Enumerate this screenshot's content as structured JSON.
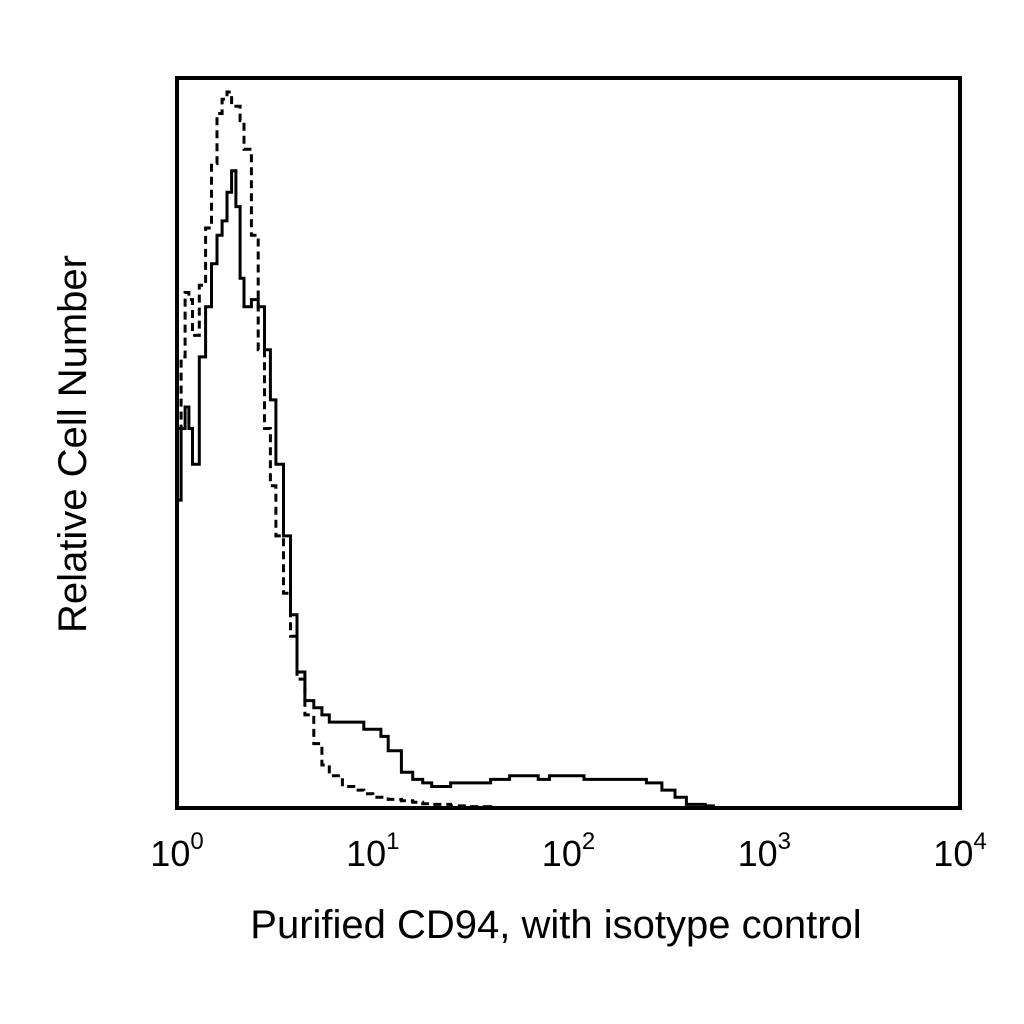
{
  "chart_data": {
    "type": "line",
    "title": "",
    "xlabel": "Purified CD94, with isotype control",
    "ylabel": "Relative Cell Number",
    "xscale": "log",
    "xlim": [
      1,
      10000
    ],
    "ylim": [
      0,
      100
    ],
    "y_ticks_shown": false,
    "grid": false,
    "legend": "none",
    "x_ticks": [
      {
        "value": 1,
        "base": "10",
        "exp": "0"
      },
      {
        "value": 10,
        "base": "10",
        "exp": "1"
      },
      {
        "value": 100,
        "base": "10",
        "exp": "2"
      },
      {
        "value": 1000,
        "base": "10",
        "exp": "3"
      },
      {
        "value": 10000,
        "base": "10",
        "exp": "4"
      }
    ],
    "series": [
      {
        "style": "solid",
        "color": "#000000",
        "x": [
          1.0,
          1.05,
          1.1,
          1.15,
          1.2,
          1.3,
          1.4,
          1.5,
          1.6,
          1.7,
          1.8,
          1.9,
          2.0,
          2.1,
          2.2,
          2.4,
          2.6,
          2.8,
          3.0,
          3.2,
          3.5,
          3.8,
          4.1,
          4.5,
          5.0,
          5.5,
          6.0,
          7.0,
          8.0,
          9.0,
          10,
          11,
          12,
          14,
          16,
          18,
          20,
          25,
          30,
          40,
          50,
          60,
          70,
          80,
          100,
          120,
          150,
          200,
          250,
          300,
          350,
          400,
          500,
          550
        ],
        "y": [
          43,
          53,
          56,
          53,
          48,
          63,
          70,
          76,
          80,
          82,
          86,
          89,
          84,
          74,
          70,
          71,
          70,
          64,
          57,
          48,
          38,
          27,
          19,
          15,
          14,
          13,
          12,
          12,
          12,
          11,
          11,
          10,
          8,
          5,
          4,
          3.5,
          3,
          3.5,
          3.5,
          4,
          4.5,
          4.5,
          4,
          4.5,
          4.5,
          4,
          4,
          4,
          3.5,
          2.5,
          1.5,
          0.5,
          0.3,
          0
        ]
      },
      {
        "style": "dashed",
        "color": "#000000",
        "x": [
          1.0,
          1.05,
          1.1,
          1.15,
          1.2,
          1.3,
          1.4,
          1.5,
          1.6,
          1.7,
          1.8,
          1.9,
          2.0,
          2.1,
          2.2,
          2.4,
          2.6,
          2.8,
          3.0,
          3.2,
          3.5,
          3.8,
          4.1,
          4.5,
          5.0,
          5.5,
          6.0,
          7.0,
          8.0,
          9.0,
          10,
          11,
          12,
          14,
          16,
          18,
          20,
          25,
          30,
          40
        ],
        "y": [
          53,
          63,
          72,
          71,
          66,
          73,
          81,
          90,
          97,
          99,
          100,
          98,
          98,
          96,
          92,
          80,
          64,
          53,
          45,
          38,
          30,
          24,
          18,
          13,
          9,
          6,
          4.5,
          3,
          2.5,
          2,
          1.5,
          1.5,
          1.2,
          1,
          0.8,
          0.6,
          0.5,
          0.3,
          0.2,
          0
        ]
      }
    ]
  }
}
